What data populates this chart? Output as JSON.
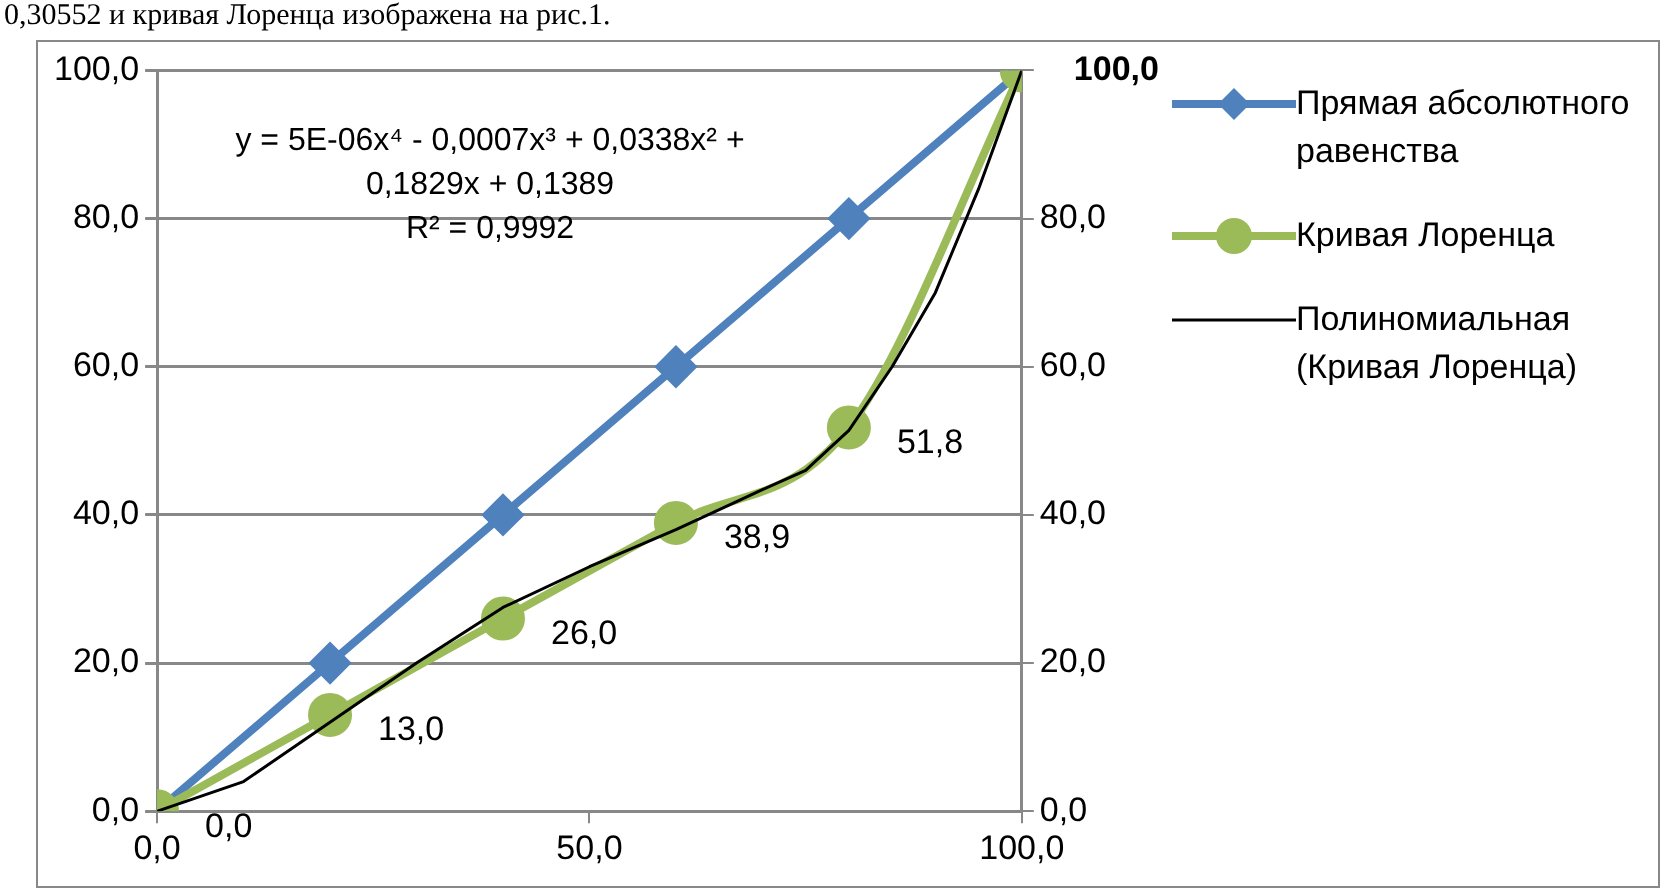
{
  "chart_data": {
    "type": "line",
    "annotations": [
      "0,30552 и кривая Лоренца изображена на рис.1.",
      "y = 5E-06x⁴ - 0,0007x³ + 0,0338x² + 0,1829x + 0,1389",
      "R² = 0,9992"
    ],
    "x": [
      0,
      20,
      40,
      60,
      80,
      100
    ],
    "series": [
      {
        "name": "Прямая абсолютного равенства",
        "color": "#4f81bd",
        "values": [
          0,
          20,
          40,
          60,
          80,
          100
        ],
        "marker": "diamond"
      },
      {
        "name": "Кривая Лоренца",
        "color": "#9bbb59",
        "values": [
          0,
          13,
          26,
          38.9,
          51.8,
          100
        ],
        "marker": "circle",
        "value_labels": [
          "0,0",
          "13,0",
          "26,0",
          "38,9",
          "51,8",
          "100,0"
        ]
      },
      {
        "name": "Полиномиальная (Кривая Лоренца)",
        "color": "#000000",
        "marker": "none",
        "x": [
          0,
          10,
          20,
          30,
          40,
          50,
          60,
          70,
          75,
          80,
          85,
          90,
          95,
          100
        ],
        "values": [
          0,
          4,
          12,
          20,
          27.5,
          33,
          38,
          43.4,
          46,
          51.4,
          60,
          70,
          84,
          100
        ]
      }
    ],
    "xlim": [
      0,
      100
    ],
    "xticks": [
      {
        "value": 0,
        "label": "0,0"
      },
      {
        "value": 50,
        "label": "50,0"
      },
      {
        "value": 100,
        "label": "100,0"
      }
    ],
    "ylim": [
      0,
      100
    ],
    "yticks": [
      {
        "value": 0,
        "label": "0,0"
      },
      {
        "value": 20,
        "label": "20,0"
      },
      {
        "value": 40,
        "label": "40,0"
      },
      {
        "value": 60,
        "label": "60,0"
      },
      {
        "value": 80,
        "label": "80,0"
      },
      {
        "value": 100,
        "label": "100,0"
      }
    ],
    "y2lim": [
      0,
      100
    ],
    "y2ticks": [
      {
        "value": 0,
        "label": "0,0"
      },
      {
        "value": 20,
        "label": "20,0"
      },
      {
        "value": 40,
        "label": "40,0"
      },
      {
        "value": 60,
        "label": "60,0"
      },
      {
        "value": 80,
        "label": "80,0"
      },
      {
        "value": 100,
        "label": null
      }
    ],
    "grid": "y",
    "legend": "right",
    "line_style": "solid"
  }
}
